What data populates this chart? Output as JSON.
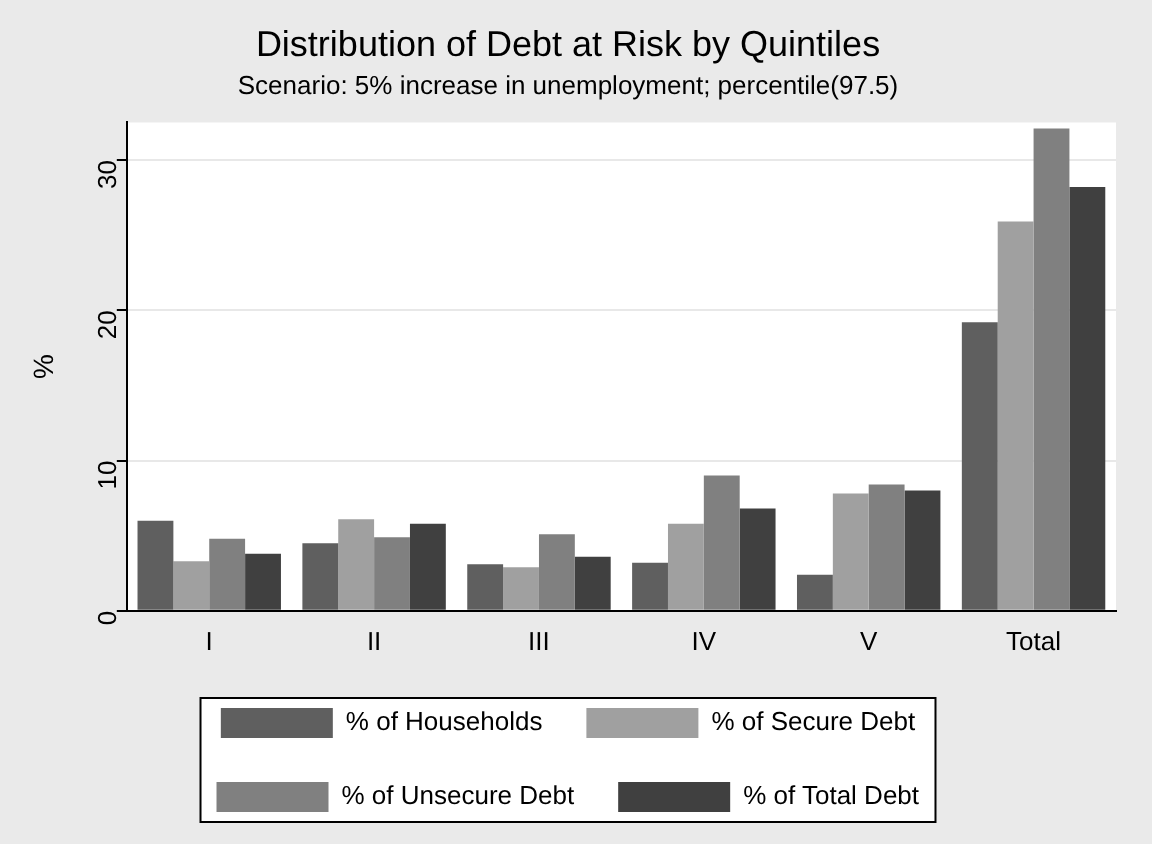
{
  "chart_data": {
    "type": "bar",
    "title": "Distribution of Debt at Risk by Quintiles",
    "subtitle": "Scenario: 5% increase in unemployment; percentile(97.5)",
    "ylabel": "%",
    "categories": [
      "I",
      "II",
      "III",
      "IV",
      "V",
      "Total"
    ],
    "series": [
      {
        "name": "% of Households",
        "color": "#5f5f5f",
        "values": [
          6.0,
          4.5,
          3.1,
          3.2,
          2.4,
          19.2
        ]
      },
      {
        "name": "% of Secure Debt",
        "color": "#a0a0a0",
        "values": [
          3.3,
          6.1,
          2.9,
          5.8,
          7.8,
          25.9
        ]
      },
      {
        "name": "% of Unsecure Debt",
        "color": "#808080",
        "values": [
          4.8,
          4.9,
          5.1,
          9.0,
          8.4,
          32.1
        ]
      },
      {
        "name": "% of Total Debt",
        "color": "#404040",
        "values": [
          3.8,
          5.8,
          3.6,
          6.8,
          8.0,
          28.2
        ]
      }
    ],
    "ylim": [
      0,
      32.5
    ],
    "yticks": [
      0,
      10,
      20,
      30
    ],
    "grid": "y",
    "legend": "bottom"
  }
}
